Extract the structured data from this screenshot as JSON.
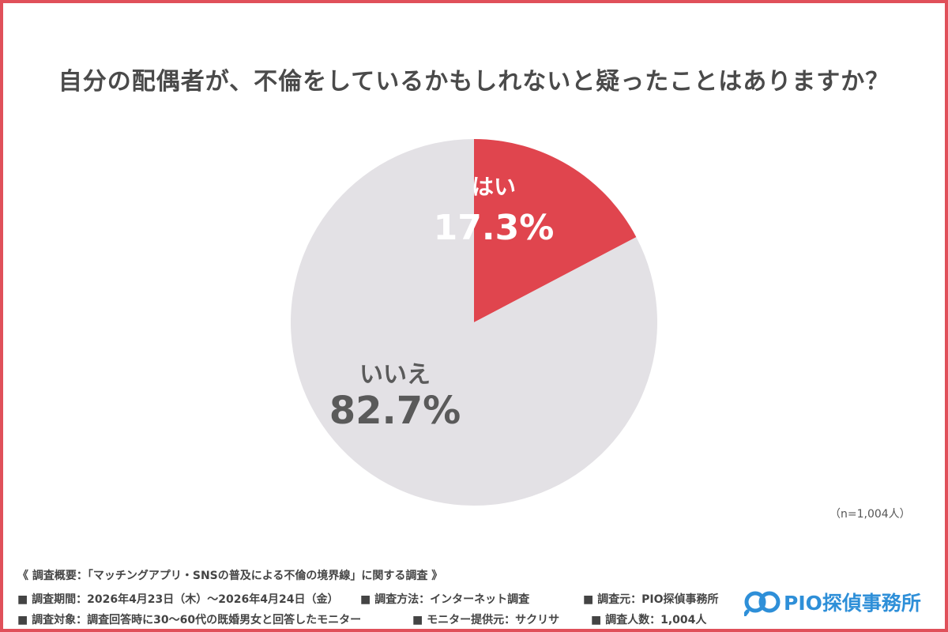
{
  "chart_data": {
    "type": "pie",
    "title": "自分の配偶者が、不倫をしているかもしれないと疑ったことはありますか？",
    "slices": [
      {
        "label": "はい",
        "value": 17.3,
        "value_label": "17.3%",
        "color": "#e0454e",
        "label_color": "#ffffff"
      },
      {
        "label": "いいえ",
        "value": 82.7,
        "value_label": "82.7%",
        "color": "#e3e1e5",
        "label_color": "#5a5a5a"
      }
    ],
    "start": "12 o'clock",
    "direction": "clockwise",
    "sample_note": "（n=1,004人）"
  },
  "survey": {
    "overview": "《 調査概要：「マッチングアプリ・SNSの普及による不倫の境界線」に関する調査 》",
    "period": "■ 調査期間：2026年4月23日（木）～2026年4月24日（金）",
    "method": "■ 調査方法：インターネット調査",
    "source": "■ 調査元：PIO探偵事務所",
    "target": "■ 調査対象：調査回答時に30～60代の既婚男女と回答したモニター",
    "provider": "■ モニター提供元：サクリサ",
    "count": "■ 調査人数：1,004人"
  },
  "logo": {
    "text": "PIO探偵事務所",
    "color": "#2e8fd8"
  },
  "frame_color": "#e0505a"
}
